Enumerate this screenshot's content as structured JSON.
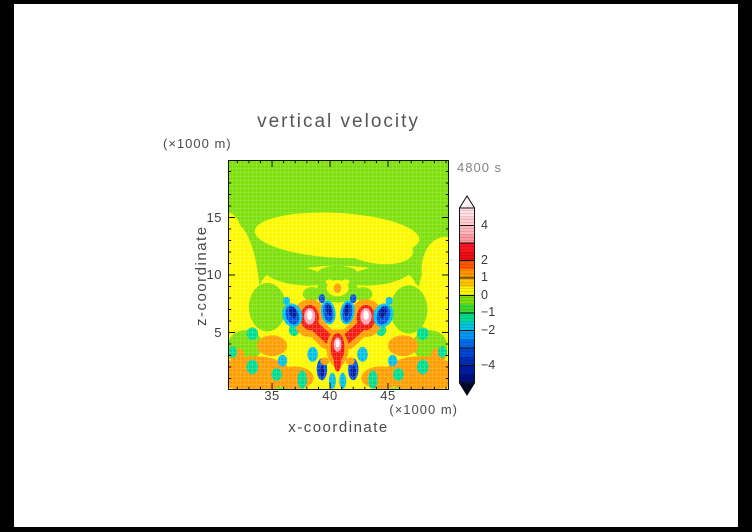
{
  "window": {
    "background": "#ffffff",
    "border_color": "#000000"
  },
  "chart_data": {
    "type": "heatmap",
    "title": "vertical velocity",
    "time_annotation": "4800 s",
    "xlabel": "x-coordinate",
    "x_unit": "(×1000 m)",
    "ylabel": "z-coordinate",
    "y_unit": "(×1000 m)",
    "xlim": [
      31.2,
      50.26
    ],
    "ylim": [
      0,
      20
    ],
    "x_major_ticks": [
      35,
      40,
      45
    ],
    "x_minor_from": 32,
    "x_minor_to": 50,
    "y_major_ticks": [
      5,
      10,
      15
    ],
    "y_minor_from": 1,
    "y_minor_to": 19,
    "minor_tick_step": 1,
    "grid": false,
    "legend_position": "right-colorbar",
    "colorbar": {
      "min": -5,
      "max": 5,
      "tick_values": [
        4,
        3,
        2,
        1,
        0,
        -1,
        -2,
        -3,
        -4
      ],
      "labeled_ticks": [
        {
          "v": 4,
          "t": "4"
        },
        {
          "v": 2,
          "t": "2"
        },
        {
          "v": 1,
          "t": "1"
        },
        {
          "v": 0,
          "t": "0"
        },
        {
          "v": -1,
          "t": "−1"
        },
        {
          "v": -2,
          "t": "−2"
        },
        {
          "v": -4,
          "t": "−4"
        }
      ],
      "segment_colors_top_to_bottom": [
        "#ffdfe4",
        "#ffccd2",
        "#ffb6be",
        "#ff9aa4",
        "#fb1621",
        "#ea0d12",
        "#ff5500",
        "#ff9300",
        "#ffc400",
        "#fbf500",
        "#7de00a",
        "#3cd830",
        "#00dc8e",
        "#00c4e0",
        "#0098f5",
        "#006ae8",
        "#0046d2",
        "#002cb4",
        "#001c9e",
        "#000e80"
      ],
      "over_arrow_color": "#ffeff2",
      "under_arrow_color": "#020226"
    },
    "palette": {
      "w": "#ffffff",
      "p": "#ffa4ae",
      "r": "#f31a12",
      "o": "#ff9e00",
      "y": "#fcf800",
      "g": "#7de00a",
      "t": "#00dc8e",
      "c": "#00bfe8",
      "b": "#0053e0",
      "n": "#001b9b"
    },
    "field": {
      "background": "g",
      "shapes": [
        [
          "e",
          "y",
          31.6,
          7.0,
          2.4,
          7.6,
          0
        ],
        [
          "e",
          "y",
          31.2,
          12.8,
          1.3,
          2.6,
          0
        ],
        [
          "e",
          "y",
          50.2,
          6.2,
          2.8,
          6.6,
          0
        ],
        [
          "e",
          "y",
          49.9,
          10.5,
          2.0,
          2.8,
          0
        ],
        [
          "e",
          "y",
          40.6,
          13.45,
          7.1,
          1.95,
          3
        ],
        [
          "e",
          "y",
          44.0,
          12.4,
          3.2,
          1.4,
          8
        ],
        [
          "e",
          "y",
          40.7,
          4.6,
          9.9,
          5.0,
          0
        ],
        [
          "e",
          "y",
          40.7,
          8.2,
          7.3,
          2.6,
          0
        ],
        [
          "e",
          "y",
          36.0,
          9.0,
          2.0,
          1.4,
          0
        ],
        [
          "e",
          "y",
          45.4,
          9.0,
          2.0,
          1.4,
          0
        ],
        [
          "e",
          "g",
          37.1,
          9.95,
          2.7,
          0.8,
          8
        ],
        [
          "e",
          "g",
          44.2,
          9.95,
          2.7,
          0.8,
          -8
        ],
        [
          "e",
          "g",
          40.65,
          10.2,
          1.7,
          0.6,
          0
        ],
        [
          "e",
          "g",
          34.6,
          7.2,
          1.6,
          2.1,
          0
        ],
        [
          "e",
          "g",
          46.8,
          7.0,
          1.6,
          2.1,
          0
        ],
        [
          "e",
          "g",
          40.65,
          8.8,
          1.75,
          1.2,
          0
        ],
        [
          "e",
          "g",
          32.7,
          3.9,
          1.5,
          1.3,
          0
        ],
        [
          "e",
          "g",
          48.6,
          3.9,
          1.5,
          1.3,
          0
        ],
        [
          "e",
          "g",
          38.45,
          8.35,
          0.8,
          0.6,
          0
        ],
        [
          "e",
          "g",
          42.85,
          8.35,
          0.8,
          0.6,
          0
        ],
        [
          "e",
          "y",
          40.65,
          8.85,
          0.95,
          0.7,
          0
        ],
        [
          "e",
          "o",
          40.65,
          8.85,
          0.33,
          0.42,
          0
        ],
        [
          "e",
          "y",
          39.95,
          9.4,
          0.32,
          0.22,
          0
        ],
        [
          "e",
          "y",
          41.35,
          9.4,
          0.32,
          0.22,
          0
        ],
        [
          "e",
          "o",
          33.4,
          1.4,
          3.2,
          1.55,
          0
        ],
        [
          "e",
          "o",
          36.9,
          1.05,
          1.7,
          1.0,
          0
        ],
        [
          "e",
          "o",
          47.9,
          1.4,
          3.2,
          1.55,
          0
        ],
        [
          "e",
          "o",
          44.4,
          1.05,
          1.7,
          1.0,
          0
        ],
        [
          "e",
          "o",
          35.0,
          3.85,
          1.3,
          0.9,
          0
        ],
        [
          "e",
          "o",
          31.9,
          3.1,
          0.7,
          0.55,
          0
        ],
        [
          "e",
          "o",
          46.3,
          3.85,
          1.3,
          0.9,
          0
        ],
        [
          "e",
          "o",
          49.4,
          3.1,
          0.7,
          0.55,
          0
        ],
        [
          "e",
          "t",
          33.3,
          4.9,
          0.5,
          0.55,
          0
        ],
        [
          "e",
          "t",
          48.0,
          4.9,
          0.5,
          0.55,
          0
        ],
        [
          "e",
          "t",
          36.9,
          5.2,
          0.45,
          0.5,
          0
        ],
        [
          "e",
          "t",
          44.4,
          5.2,
          0.45,
          0.5,
          0
        ],
        [
          "e",
          "t",
          31.6,
          3.3,
          0.4,
          0.5,
          0
        ],
        [
          "e",
          "t",
          49.7,
          3.3,
          0.4,
          0.5,
          0
        ],
        [
          "e",
          "t",
          33.3,
          2.0,
          0.5,
          0.65,
          0
        ],
        [
          "e",
          "t",
          48.0,
          2.0,
          0.5,
          0.65,
          0
        ],
        [
          "e",
          "t",
          35.4,
          1.35,
          0.45,
          0.55,
          0
        ],
        [
          "e",
          "t",
          45.9,
          1.35,
          0.45,
          0.55,
          0
        ],
        [
          "e",
          "c",
          35.9,
          2.55,
          0.4,
          0.5,
          0
        ],
        [
          "e",
          "c",
          45.4,
          2.55,
          0.4,
          0.5,
          0
        ],
        [
          "e",
          "c",
          38.5,
          3.1,
          0.45,
          0.65,
          0
        ],
        [
          "e",
          "c",
          42.8,
          3.1,
          0.45,
          0.65,
          0
        ],
        [
          "e",
          "t",
          37.6,
          0.9,
          0.4,
          0.8,
          0
        ],
        [
          "e",
          "t",
          43.7,
          0.9,
          0.4,
          0.8,
          0
        ],
        [
          "e",
          "c",
          40.2,
          0.8,
          0.3,
          0.7,
          0
        ],
        [
          "e",
          "c",
          41.1,
          0.8,
          0.3,
          0.7,
          0
        ],
        [
          "l",
          "o",
          38.25,
          5.95,
          39.8,
          4.4,
          1.7
        ],
        [
          "l",
          "o",
          39.8,
          4.4,
          41.5,
          4.4,
          1.7
        ],
        [
          "l",
          "o",
          41.5,
          4.4,
          43.1,
          5.95,
          1.7
        ],
        [
          "e",
          "o",
          38.25,
          6.25,
          1.45,
          1.65,
          0
        ],
        [
          "e",
          "o",
          43.1,
          6.25,
          1.45,
          1.65,
          0
        ],
        [
          "l",
          "r",
          38.3,
          5.9,
          39.85,
          4.45,
          0.85
        ],
        [
          "l",
          "r",
          39.85,
          4.45,
          41.45,
          4.45,
          0.85
        ],
        [
          "l",
          "r",
          41.45,
          4.45,
          43.05,
          5.9,
          0.85
        ],
        [
          "e",
          "r",
          38.25,
          6.3,
          0.8,
          1.1,
          0
        ],
        [
          "e",
          "r",
          43.1,
          6.3,
          0.8,
          1.1,
          0
        ],
        [
          "e",
          "p",
          38.25,
          6.4,
          0.48,
          0.72,
          0
        ],
        [
          "e",
          "p",
          43.1,
          6.4,
          0.48,
          0.72,
          0
        ],
        [
          "e",
          "w",
          38.25,
          6.5,
          0.24,
          0.4,
          0
        ],
        [
          "e",
          "w",
          43.1,
          6.5,
          0.24,
          0.4,
          0
        ],
        [
          "e",
          "o",
          40.65,
          3.6,
          0.95,
          1.6,
          0
        ],
        [
          "e",
          "r",
          40.65,
          3.7,
          0.6,
          1.25,
          0
        ],
        [
          "e",
          "r",
          40.65,
          2.45,
          0.32,
          0.85,
          0
        ],
        [
          "e",
          "p",
          40.65,
          3.95,
          0.34,
          0.62,
          0
        ],
        [
          "e",
          "w",
          40.65,
          4.05,
          0.17,
          0.35,
          0
        ],
        [
          "e",
          "c",
          36.75,
          6.5,
          0.85,
          1.05,
          -18
        ],
        [
          "e",
          "b",
          36.75,
          6.5,
          0.55,
          0.85,
          -18
        ],
        [
          "e",
          "n",
          36.8,
          6.75,
          0.3,
          0.5,
          -18
        ],
        [
          "e",
          "c",
          39.85,
          6.75,
          0.62,
          1.05,
          -8
        ],
        [
          "e",
          "b",
          39.85,
          6.75,
          0.42,
          0.85,
          -8
        ],
        [
          "e",
          "n",
          39.9,
          6.95,
          0.22,
          0.5,
          -8
        ],
        [
          "e",
          "c",
          41.5,
          6.75,
          0.62,
          1.05,
          8
        ],
        [
          "e",
          "b",
          41.5,
          6.75,
          0.42,
          0.85,
          8
        ],
        [
          "e",
          "n",
          41.45,
          6.95,
          0.22,
          0.5,
          8
        ],
        [
          "e",
          "c",
          44.6,
          6.5,
          0.85,
          1.05,
          18
        ],
        [
          "e",
          "b",
          44.6,
          6.5,
          0.55,
          0.85,
          18
        ],
        [
          "e",
          "n",
          44.55,
          6.75,
          0.3,
          0.5,
          18
        ],
        [
          "e",
          "b",
          39.3,
          7.95,
          0.28,
          0.4,
          0
        ],
        [
          "e",
          "b",
          42.0,
          7.95,
          0.28,
          0.4,
          0
        ],
        [
          "e",
          "c",
          36.25,
          7.75,
          0.3,
          0.35,
          0
        ],
        [
          "e",
          "c",
          45.1,
          7.75,
          0.3,
          0.35,
          0
        ],
        [
          "e",
          "b",
          39.3,
          1.8,
          0.45,
          0.95,
          0
        ],
        [
          "e",
          "b",
          42.0,
          1.8,
          0.45,
          0.95,
          0
        ],
        [
          "e",
          "n",
          39.3,
          1.6,
          0.22,
          0.5,
          0
        ],
        [
          "e",
          "n",
          42.0,
          1.6,
          0.22,
          0.5,
          0
        ],
        [
          "e",
          "o",
          39.55,
          2.5,
          0.38,
          0.33,
          0
        ],
        [
          "e",
          "o",
          41.75,
          2.5,
          0.38,
          0.33,
          0
        ]
      ]
    }
  }
}
